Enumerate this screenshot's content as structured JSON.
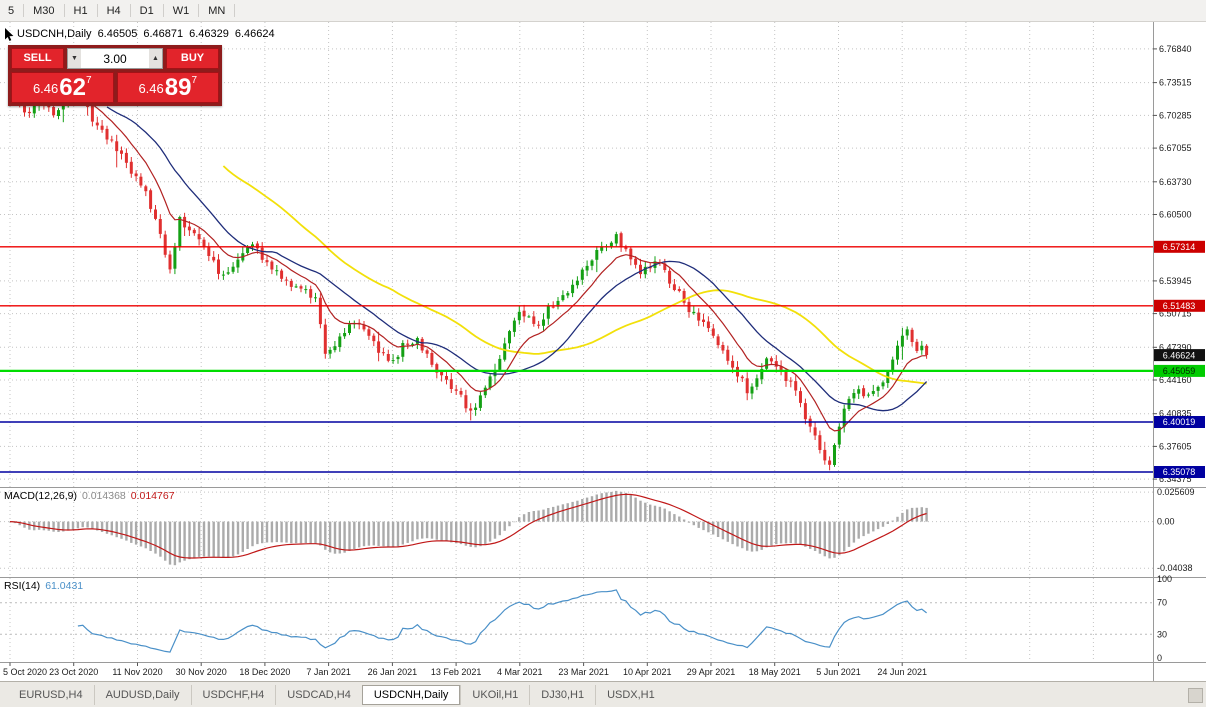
{
  "toolbar": {
    "timeframes": [
      "5",
      "M30",
      "H1",
      "H4",
      "D1",
      "W1",
      "MN"
    ]
  },
  "header": {
    "title": "USDCNH,Daily",
    "open": "6.46505",
    "high": "6.46871",
    "low": "6.46329",
    "close": "6.46624"
  },
  "trade_panel": {
    "sell_label": "SELL",
    "buy_label": "BUY",
    "volume": "3.00",
    "volume_down_glyph": "▼",
    "volume_up_glyph": "▲",
    "sell_price": {
      "big": "6.46",
      "pips": "62",
      "sup": "7"
    },
    "buy_price": {
      "big": "6.46",
      "pips": "89",
      "sup": "7"
    }
  },
  "indicators": {
    "macd": {
      "name": "MACD(12,26,9)",
      "value_main": "0.014368",
      "value_signal": "0.014767"
    },
    "rsi": {
      "name": "RSI(14)",
      "value": "61.0431"
    }
  },
  "tabs": {
    "items": [
      {
        "label": "EURUSD,H4",
        "active": false
      },
      {
        "label": "AUDUSD,Daily",
        "active": false
      },
      {
        "label": "USDCHF,H4",
        "active": false
      },
      {
        "label": "USDCAD,H4",
        "active": false
      },
      {
        "label": "USDCNH,Daily",
        "active": true
      },
      {
        "label": "UKOil,H1",
        "active": false
      },
      {
        "label": "DJ30,H1",
        "active": false
      },
      {
        "label": "USDX,H1",
        "active": false
      }
    ]
  },
  "chart_data": {
    "type": "candlestick",
    "title": "USDCNH,Daily",
    "num_bars": 190,
    "bars_per_label": 13.14,
    "x_labels": [
      "5 Oct 2020",
      "23 Oct 2020",
      "11 Nov 2020",
      "30 Nov 2020",
      "18 Dec 2020",
      "7 Jan 2021",
      "26 Jan 2021",
      "13 Feb 2021",
      "4 Mar 2021",
      "23 Mar 2021",
      "10 Apr 2021",
      "29 Apr 2021",
      "18 May 2021",
      "5 Jun 2021",
      "24 Jun 2021"
    ],
    "y_axis": {
      "top": 6.795,
      "bottom": 6.336,
      "tick_labels": [
        "6.76840",
        "6.73515",
        "6.70285",
        "6.67055",
        "6.63730",
        "6.60500",
        "6.53945",
        "6.50715",
        "6.47390",
        "6.44160",
        "6.40835",
        "6.37605",
        "6.34375"
      ]
    },
    "close_anchors": [
      [
        0,
        6.742
      ],
      [
        2,
        6.712
      ],
      [
        4,
        6.702
      ],
      [
        6,
        6.722
      ],
      [
        9,
        6.705
      ],
      [
        12,
        6.718
      ],
      [
        15,
        6.728
      ],
      [
        17,
        6.7
      ],
      [
        20,
        6.682
      ],
      [
        23,
        6.662
      ],
      [
        26,
        6.641
      ],
      [
        28,
        6.628
      ],
      [
        30,
        6.6
      ],
      [
        32,
        6.565
      ],
      [
        33,
        6.552
      ],
      [
        35,
        6.6
      ],
      [
        38,
        6.586
      ],
      [
        40,
        6.572
      ],
      [
        43,
        6.549
      ],
      [
        45,
        6.547
      ],
      [
        48,
        6.565
      ],
      [
        50,
        6.576
      ],
      [
        52,
        6.562
      ],
      [
        55,
        6.548
      ],
      [
        58,
        6.537
      ],
      [
        61,
        6.528
      ],
      [
        63,
        6.52
      ],
      [
        65,
        6.468
      ],
      [
        67,
        6.478
      ],
      [
        70,
        6.498
      ],
      [
        73,
        6.492
      ],
      [
        76,
        6.472
      ],
      [
        79,
        6.458
      ],
      [
        81,
        6.475
      ],
      [
        84,
        6.48
      ],
      [
        86,
        6.465
      ],
      [
        88,
        6.452
      ],
      [
        91,
        6.432
      ],
      [
        93,
        6.425
      ],
      [
        95,
        6.408
      ],
      [
        97,
        6.425
      ],
      [
        99,
        6.445
      ],
      [
        101,
        6.462
      ],
      [
        103,
        6.487
      ],
      [
        105,
        6.512
      ],
      [
        107,
        6.502
      ],
      [
        109,
        6.496
      ],
      [
        111,
        6.512
      ],
      [
        113,
        6.522
      ],
      [
        115,
        6.53
      ],
      [
        117,
        6.542
      ],
      [
        119,
        6.556
      ],
      [
        121,
        6.568
      ],
      [
        123,
        6.575
      ],
      [
        125,
        6.583
      ],
      [
        126,
        6.575
      ],
      [
        128,
        6.562
      ],
      [
        130,
        6.548
      ],
      [
        132,
        6.553
      ],
      [
        134,
        6.558
      ],
      [
        136,
        6.538
      ],
      [
        138,
        6.528
      ],
      [
        140,
        6.512
      ],
      [
        142,
        6.502
      ],
      [
        144,
        6.492
      ],
      [
        146,
        6.478
      ],
      [
        148,
        6.462
      ],
      [
        150,
        6.448
      ],
      [
        152,
        6.432
      ],
      [
        154,
        6.442
      ],
      [
        156,
        6.462
      ],
      [
        158,
        6.452
      ],
      [
        160,
        6.442
      ],
      [
        162,
        6.432
      ],
      [
        164,
        6.405
      ],
      [
        166,
        6.385
      ],
      [
        168,
        6.362
      ],
      [
        169,
        6.356
      ],
      [
        171,
        6.395
      ],
      [
        173,
        6.425
      ],
      [
        175,
        6.432
      ],
      [
        177,
        6.425
      ],
      [
        179,
        6.432
      ],
      [
        181,
        6.452
      ],
      [
        183,
        6.478
      ],
      [
        185,
        6.492
      ],
      [
        186,
        6.482
      ],
      [
        187,
        6.468
      ],
      [
        188,
        6.472
      ],
      [
        189,
        6.46624
      ]
    ],
    "last_close": 6.46624,
    "candle_colors": {
      "up": "#14a014",
      "down": "#e03030"
    },
    "moving_averages": [
      {
        "type": "sma",
        "period": 45,
        "color": "#f2e00a",
        "width": 1.8
      },
      {
        "type": "sma",
        "period": 21,
        "color": "#1f2d7a",
        "width": 1.3
      },
      {
        "type": "ema",
        "period": 10,
        "color": "#b22222",
        "width": 1.2
      }
    ],
    "levels": [
      {
        "price": 6.57314,
        "label": "6.57314",
        "color": "#ee0000",
        "badge_bg": "#cc0000",
        "badge_fg": "#ffffff",
        "width": 1.4
      },
      {
        "price": 6.51483,
        "label": "6.51483",
        "color": "#ee0000",
        "badge_bg": "#cc0000",
        "badge_fg": "#ffffff",
        "width": 1.4
      },
      {
        "price": 6.45059,
        "label": "6.45059",
        "color": "#00dd00",
        "badge_bg": "#00cc00",
        "badge_fg": "#002a00",
        "width": 2.2
      },
      {
        "price": 6.40019,
        "label": "6.40019",
        "color": "#0000a0",
        "badge_bg": "#0000a0",
        "badge_fg": "#ffffff",
        "width": 1.4
      },
      {
        "price": 6.35078,
        "label": "6.35078",
        "color": "#0000a0",
        "badge_bg": "#0000a0",
        "badge_fg": "#ffffff",
        "width": 1.4
      }
    ],
    "current_price_badge": {
      "price": 6.46624,
      "label": "6.46624",
      "badge_bg": "#111111",
      "badge_fg": "#ffffff"
    },
    "macd_pane": {
      "fast": 12,
      "slow": 26,
      "signal": 9,
      "range": [
        -0.048,
        0.03
      ],
      "tick_labels": [
        {
          "v": 0.025609,
          "label": "0.025609"
        },
        {
          "v": 0,
          "label": "0.00"
        },
        {
          "v": -0.04038,
          "label": "-0.04038"
        }
      ],
      "histogram_color": "#ababab",
      "signal_color": "#c01818"
    },
    "rsi_pane": {
      "period": 14,
      "range": [
        0,
        100
      ],
      "levels": [
        70,
        30
      ],
      "tick_labels": [
        {
          "v": 100,
          "label": "100"
        },
        {
          "v": 70,
          "label": "70"
        },
        {
          "v": 30,
          "label": "30"
        },
        {
          "v": 0,
          "label": "0"
        }
      ],
      "line_color": "#4a90c8"
    }
  }
}
